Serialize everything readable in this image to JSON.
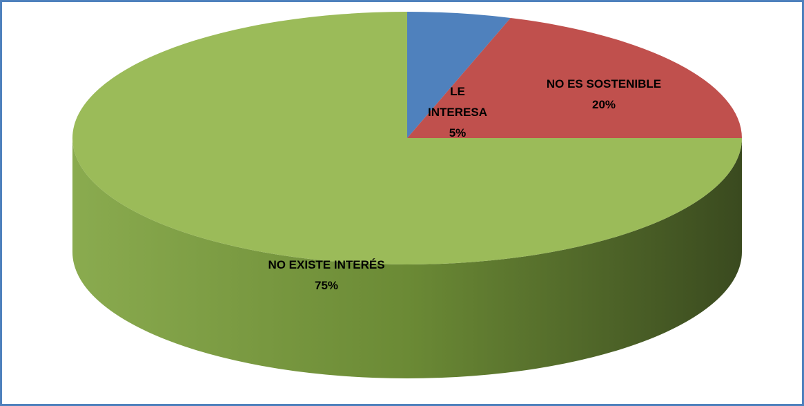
{
  "chart_data": {
    "type": "pie3d",
    "categories": [
      "LE INTERESA",
      "NO ES SOSTENIBLE",
      "NO EXISTE INTERÉS"
    ],
    "values": [
      5,
      20,
      75
    ],
    "value_labels": [
      "5%",
      "20%",
      "75%"
    ],
    "colors": [
      "#4f81bd",
      "#c0504d",
      "#9bbb59"
    ]
  }
}
